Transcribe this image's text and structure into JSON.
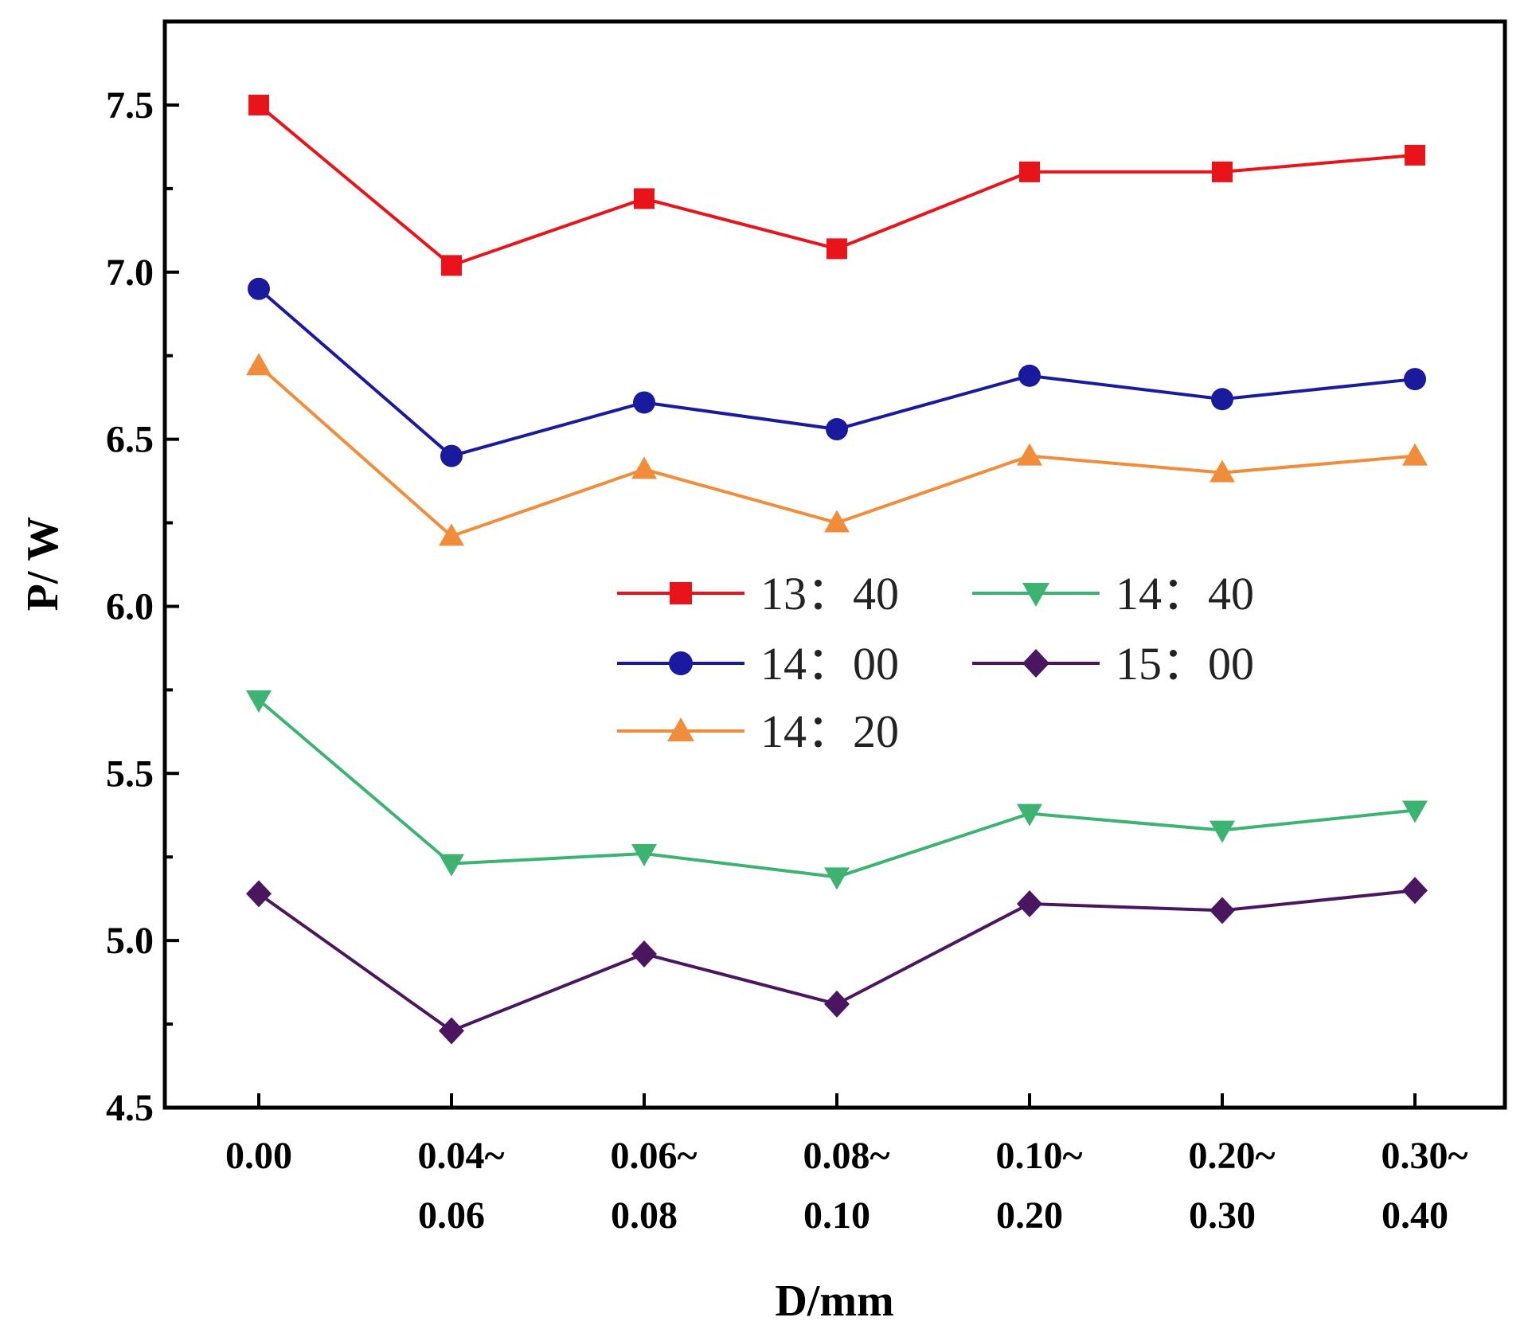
{
  "chart_data": {
    "type": "line",
    "title": "",
    "xlabel": "D/mm",
    "ylabel": "P/ W",
    "categories": [
      [
        "0.00"
      ],
      [
        "0.04~",
        "0.06"
      ],
      [
        "0.06~",
        "0.08"
      ],
      [
        "0.08~",
        "0.10"
      ],
      [
        "0.10~",
        "0.20"
      ],
      [
        "0.20~",
        "0.30"
      ],
      [
        "0.30~",
        "0.40"
      ]
    ],
    "ylim": [
      4.5,
      7.75
    ],
    "yticks": [
      "4.5",
      "5.0",
      "5.5",
      "6.0",
      "6.5",
      "7.0",
      "7.5"
    ],
    "legend_position": "center",
    "series": [
      {
        "name": "13：40",
        "color": "#e8141a",
        "marker": "square",
        "values": [
          7.5,
          7.02,
          7.22,
          7.07,
          7.3,
          7.3,
          7.35
        ]
      },
      {
        "name": "14：00",
        "color": "#1a1a9e",
        "marker": "circle",
        "values": [
          6.95,
          6.45,
          6.61,
          6.53,
          6.69,
          6.62,
          6.68
        ]
      },
      {
        "name": "14：20",
        "color": "#f08c3a",
        "marker": "triangle-up",
        "values": [
          6.72,
          6.21,
          6.41,
          6.25,
          6.45,
          6.4,
          6.45
        ]
      },
      {
        "name": "14：40",
        "color": "#3cb371",
        "marker": "triangle-down",
        "values": [
          5.72,
          5.23,
          5.26,
          5.19,
          5.38,
          5.33,
          5.39
        ]
      },
      {
        "name": "15：00",
        "color": "#4b1660",
        "marker": "diamond",
        "values": [
          5.14,
          4.73,
          4.96,
          4.81,
          5.11,
          5.09,
          5.15
        ]
      }
    ]
  }
}
